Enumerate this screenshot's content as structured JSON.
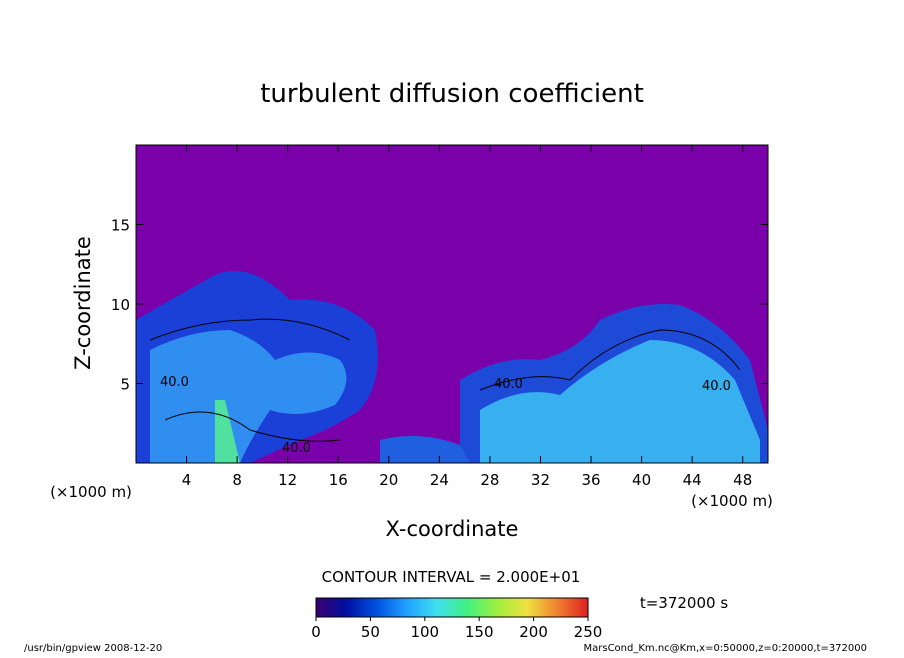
{
  "chart_data": {
    "type": "heatmap",
    "title": "turbulent diffusion coefficient",
    "xlabel": "X-coordinate",
    "ylabel": "Z-coordinate",
    "xunit": "(×1000 m)",
    "yunit": "(×1000 m)",
    "xlim": [
      0,
      50
    ],
    "ylim": [
      0,
      20
    ],
    "xticks": [
      4,
      8,
      12,
      16,
      20,
      24,
      28,
      32,
      36,
      40,
      44,
      48
    ],
    "yticks": [
      5,
      10,
      15
    ],
    "contour_interval": "CONTOUR INTERVAL = 2.000E+01",
    "contour_labels": [
      "40.0",
      "40.0",
      "40.0",
      "40.0"
    ],
    "colorbar": {
      "lim": [
        0,
        250
      ],
      "ticks": [
        0,
        50,
        100,
        150,
        200,
        250
      ],
      "colors": [
        "#3a0070",
        "#0010a0",
        "#0050e0",
        "#20a0ff",
        "#40e0f0",
        "#40f080",
        "#a0f040",
        "#f0e040",
        "#f08030",
        "#e02020"
      ]
    },
    "background_color": "#7a00aa",
    "time_label": "t=372000 s",
    "footer_left": "/usr/bin/gpview   2008-12-20",
    "footer_right": "MarsCond_Km.nc@Km,x=0:50000,z=0:20000,t=372000"
  }
}
